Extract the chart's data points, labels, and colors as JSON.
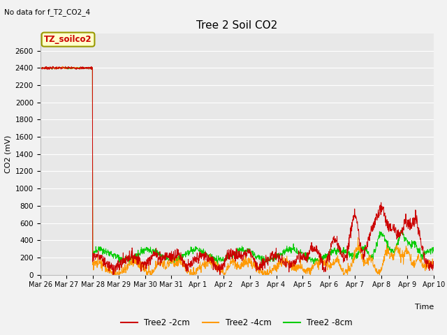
{
  "title": "Tree 2 Soil CO2",
  "subtitle": "No data for f_T2_CO2_4",
  "ylabel": "CO2 (mV)",
  "xlabel": "Time",
  "ylim": [
    0,
    2800
  ],
  "yticks": [
    0,
    200,
    400,
    600,
    800,
    1000,
    1200,
    1400,
    1600,
    1800,
    2000,
    2200,
    2400,
    2600
  ],
  "xtick_labels": [
    "Mar 26",
    "Mar 27",
    "Mar 28",
    "Mar 29",
    "Mar 30",
    "Mar 31",
    "Apr 1",
    "Apr 2",
    "Apr 3",
    "Apr 4",
    "Apr 5",
    "Apr 6",
    "Apr 7",
    "Apr 8",
    "Apr 9",
    "Apr 10"
  ],
  "legend_label": "TZ_soilco2",
  "legend_box_color": "#ffffcc",
  "legend_box_edge": "#999900",
  "line_colors": {
    "2cm": "#cc0000",
    "4cm": "#ff9900",
    "8cm": "#00cc00"
  },
  "series_labels": [
    "Tree2 -2cm",
    "Tree2 -4cm",
    "Tree2 -8cm"
  ],
  "plot_bg_color": "#e8e8e8",
  "fig_bg_color": "#f2f2f2",
  "grid_color": "#ffffff"
}
